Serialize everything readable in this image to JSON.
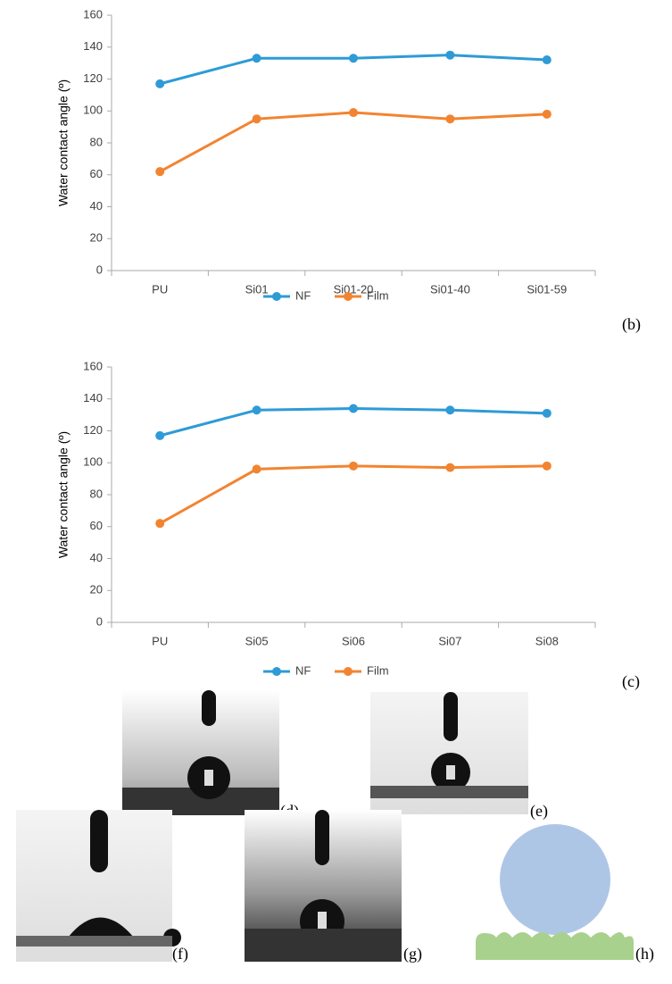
{
  "chart_data": [
    {
      "type": "line",
      "panel_label": "(b)",
      "y_label": "Water contact angle (º)",
      "categories": [
        "PU",
        "Si01",
        "Si01-20",
        "Si01-40",
        "Si01-59"
      ],
      "series": [
        {
          "name": "NF",
          "color": "#2e9bd6",
          "values": [
            117,
            133,
            133,
            135,
            132
          ]
        },
        {
          "name": "Film",
          "color": "#f28431",
          "values": [
            62,
            95,
            99,
            95,
            98
          ]
        }
      ],
      "ylim": [
        0,
        160
      ],
      "yticks": [
        0,
        20,
        40,
        60,
        80,
        100,
        120,
        140,
        160
      ],
      "grid": false,
      "legend": "bottom"
    },
    {
      "type": "line",
      "panel_label": "(c)",
      "y_label": "Water contact angle (º)",
      "categories": [
        "PU",
        "Si05",
        "Si06",
        "Si07",
        "Si08"
      ],
      "series": [
        {
          "name": "NF",
          "color": "#2e9bd6",
          "values": [
            117,
            133,
            134,
            133,
            131
          ]
        },
        {
          "name": "Film",
          "color": "#f28431",
          "values": [
            62,
            96,
            98,
            97,
            98
          ]
        }
      ],
      "ylim": [
        0,
        160
      ],
      "yticks": [
        0,
        20,
        40,
        60,
        80,
        100,
        120,
        140,
        160
      ],
      "grid": false,
      "legend": "bottom"
    }
  ],
  "images": [
    {
      "label": "(d)"
    },
    {
      "label": "(e)"
    },
    {
      "label": "(f)"
    },
    {
      "label": "(g)"
    },
    {
      "label": "(h)"
    }
  ]
}
